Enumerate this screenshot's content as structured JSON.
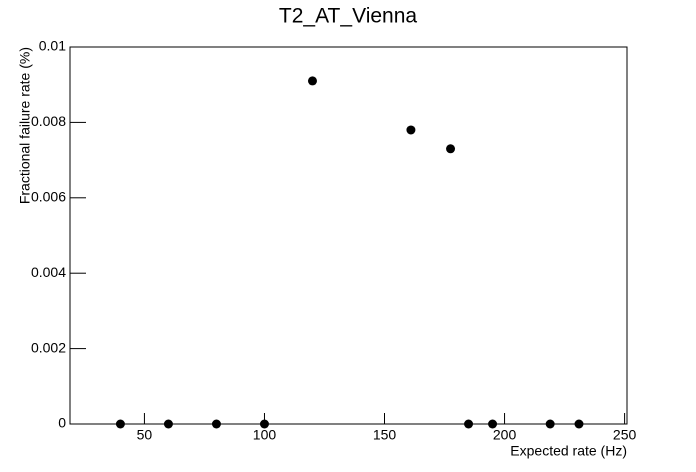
{
  "chart_data": {
    "type": "scatter",
    "title": "T2_AT_Vienna",
    "x_label": "Expected rate (Hz)",
    "y_label": "Fractional failure rate (%)",
    "x": [
      40,
      60,
      80,
      100,
      120,
      161,
      177.5,
      185,
      195,
      219,
      231
    ],
    "values": [
      0,
      0,
      0,
      0,
      0.0091,
      0.0078,
      0.0073,
      0,
      0,
      0,
      0
    ],
    "color": "#000000",
    "xlim": [
      19,
      251
    ],
    "xticks": [
      50,
      100,
      150,
      200,
      250
    ],
    "ylim": [
      0,
      0.01
    ],
    "yticks": [
      0,
      0.002,
      0.004,
      0.006,
      0.008,
      0.01
    ]
  }
}
